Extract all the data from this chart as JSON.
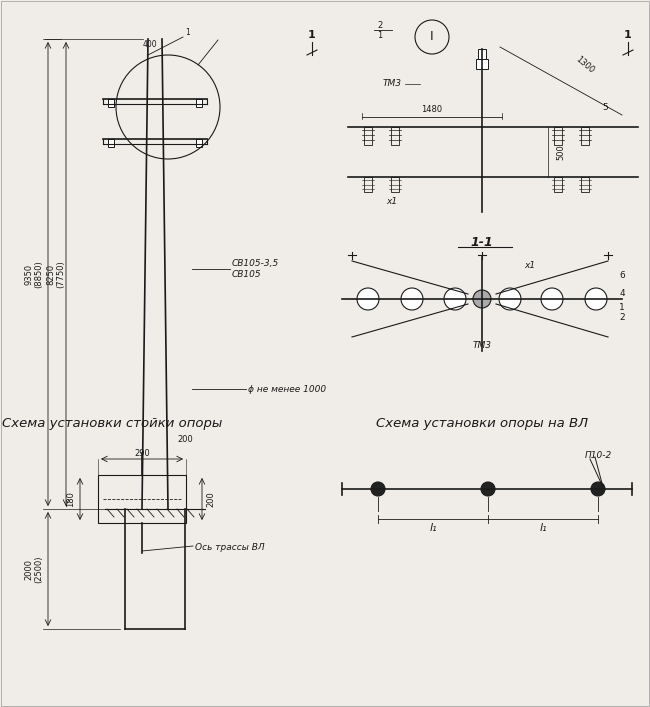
{
  "bg_color": "#f0ede8",
  "line_color": "#1a1a1a",
  "title_left": "Схема установки стойки опоры",
  "title_right": "Схема установки опоры на ВЛ",
  "label_p10": "П10-2",
  "label_l1_left": "l₁",
  "label_l1_right": "l₁",
  "label_sv": "СВ105-3,5\nСВ105",
  "label_phi": "ϕ не менее 1000",
  "dim_9350": "9350\n(8850)",
  "dim_8250": "8250\n(7750)",
  "dim_2000": "2000\n(2500)",
  "dim_200": "200",
  "dim_290": "290",
  "dim_180": "180",
  "dim_200b": "200",
  "dim_1480": "1480",
  "dim_1300": "1300",
  "dim_500": "500",
  "label_tm3": "ТМ3",
  "label_x1": "x1",
  "label_section": "1-1",
  "label_6": "6",
  "label_4": "4",
  "label_1": "1",
  "label_2": "2",
  "label_os": "Ось трассы ВЛ",
  "font_size_title": 9.5,
  "font_size_label": 6.5,
  "font_size_dim": 6.0
}
